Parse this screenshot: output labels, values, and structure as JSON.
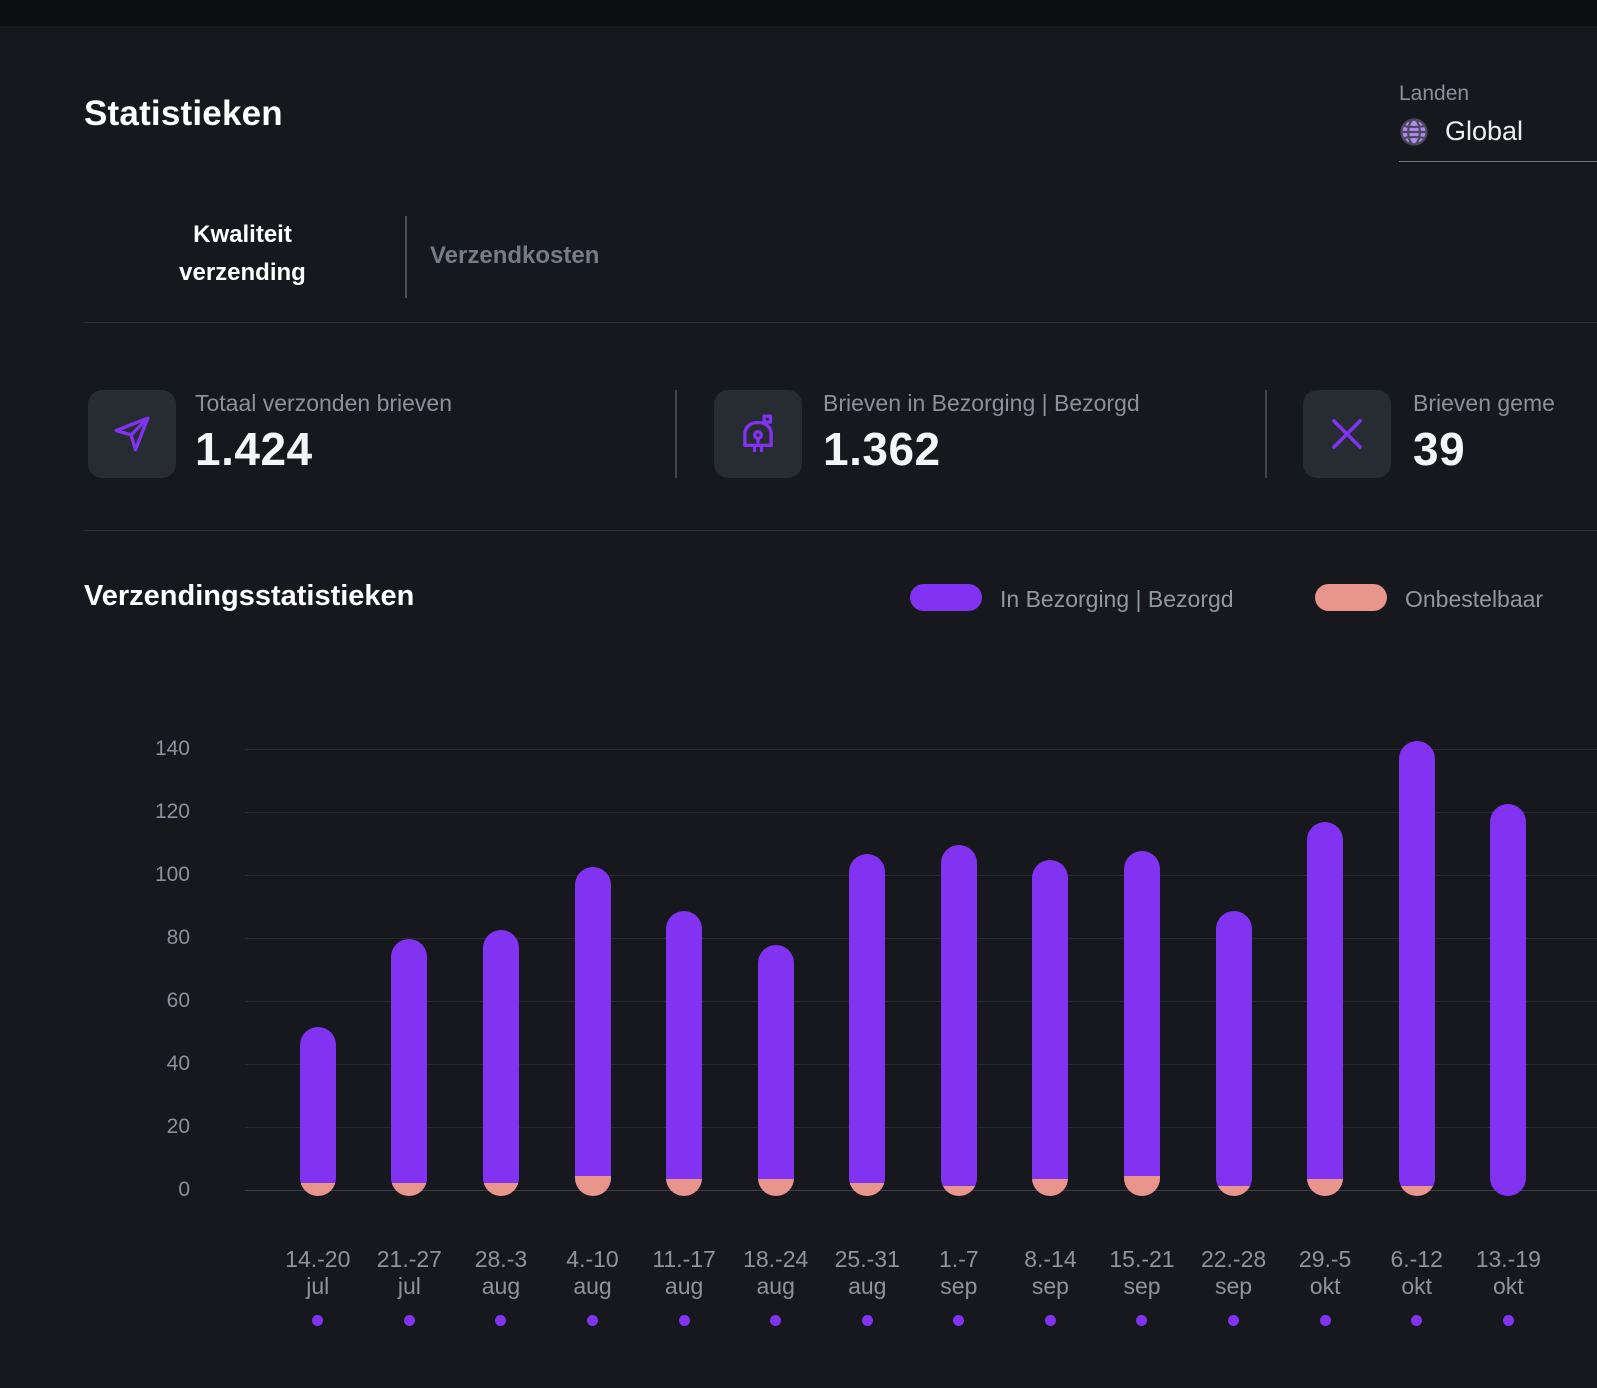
{
  "colors": {
    "accent": "#8133f1",
    "salmon": "#e8958b",
    "globe_fill": "#b18cf0"
  },
  "page": {
    "title": "Statistieken"
  },
  "country_select": {
    "label": "Landen",
    "value": "Global"
  },
  "tabs": [
    {
      "label": "Kwaliteit verzending",
      "active": true
    },
    {
      "label": "Verzendkosten",
      "active": false
    }
  ],
  "stats": [
    {
      "icon": "send-icon",
      "label": "Totaal verzonden brieven",
      "value": "1.424"
    },
    {
      "icon": "mailbox-icon",
      "label": "Brieven in Bezorging | Bezorgd",
      "value": "1.362"
    },
    {
      "icon": "x-icon",
      "label": "Brieven geme",
      "value": "39"
    }
  ],
  "chart_section": {
    "title": "Verzendingsstatistieken",
    "legend": [
      {
        "label": "In Bezorging | Bezorgd",
        "color": "#8133f1"
      },
      {
        "label": "Onbestelbaar",
        "color": "#e8958b"
      }
    ]
  },
  "chart_data": {
    "type": "bar",
    "stacked": true,
    "title": "Verzendingsstatistieken",
    "categories": [
      "14.-20 jul",
      "21.-27 jul",
      "28.-3 aug",
      "4.-10 aug",
      "11.-17 aug",
      "18.-24 aug",
      "25.-31 aug",
      "1.-7 sep",
      "8.-14 sep",
      "15.-21 sep",
      "22.-28 sep",
      "29.-5 okt",
      "6.-12 okt",
      "13.-19 okt"
    ],
    "series": [
      {
        "name": "In Bezorging | Bezorgd",
        "color": "#8133f1",
        "values": [
          49,
          77,
          80,
          98,
          85,
          74,
          104,
          108,
          101,
          103,
          87,
          113,
          141,
          123
        ]
      },
      {
        "name": "Onbestelbaar",
        "color": "#e8958b",
        "values": [
          3,
          3,
          3,
          5,
          4,
          4,
          3,
          2,
          4,
          5,
          2,
          4,
          2,
          0
        ]
      }
    ],
    "ylim": [
      0,
      140
    ],
    "yticks": [
      0,
      20,
      40,
      60,
      80,
      100,
      120,
      140
    ],
    "grid": true,
    "legend_position": "top-right",
    "xlabel": "",
    "ylabel": ""
  }
}
